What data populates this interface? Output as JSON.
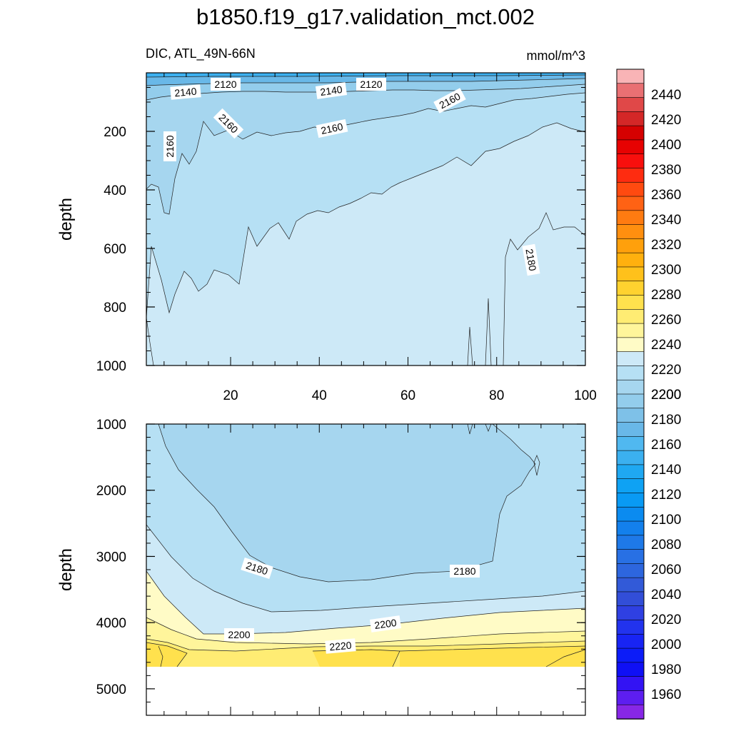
{
  "chart_data": {
    "type": "contour",
    "title": "b1850.f19_g17.validation_mct.002",
    "field_label": "DIC, ATL_49N-66N",
    "units": "mmol/m^3",
    "ylabel": "depth",
    "panels": [
      {
        "name": "upper",
        "ylim": [
          0,
          1000
        ],
        "xlim": [
          1,
          100
        ],
        "yticks": [
          200,
          400,
          600,
          800,
          1000
        ],
        "xticks": [
          20,
          40,
          60,
          80,
          100
        ],
        "contour_labels": [
          "2140",
          "2120",
          "2140",
          "2120",
          "2160",
          "2160",
          "2160",
          "2160",
          "2180"
        ]
      },
      {
        "name": "lower",
        "ylim": [
          1000,
          5400
        ],
        "xlim": [
          1,
          100
        ],
        "yticks": [
          1000,
          2000,
          3000,
          4000,
          5000
        ],
        "contour_labels": [
          "2180",
          "2180",
          "2200",
          "2200",
          "2220"
        ]
      }
    ],
    "colorbar": {
      "levels": [
        "2440",
        "2420",
        "2400",
        "2380",
        "2360",
        "2340",
        "2320",
        "2300",
        "2280",
        "2260",
        "2240",
        "2220",
        "2200",
        "2180",
        "2160",
        "2140",
        "2120",
        "2100",
        "2080",
        "2060",
        "2040",
        "2020",
        "2000",
        "1980",
        "1960"
      ],
      "colors": [
        "#f9b4b6",
        "#e97073",
        "#e04848",
        "#d42727",
        "#d50101",
        "#e70202",
        "#f80f0d",
        "#fe2c10",
        "#ff4a10",
        "#ff6214",
        "#ff7b11",
        "#ff8f0f",
        "#ffa00c",
        "#ffb00e",
        "#ffc11b",
        "#ffd22f",
        "#ffe14d",
        "#ffec73",
        "#fff59b",
        "#fffbc6",
        "#cde9f7",
        "#b6e0f4",
        "#a6d6ef",
        "#93cdec",
        "#7ec1e8",
        "#69b8e8",
        "#50b8f0",
        "#3bb0f0",
        "#1fa8f2",
        "#0ea2f4",
        "#099af4",
        "#0b8bf0",
        "#1380ec",
        "#1e79e8",
        "#2870e4",
        "#2d66de",
        "#325ad8",
        "#324ed8",
        "#2f40e2",
        "#2233ee",
        "#1824f4",
        "#0c1cf8",
        "#0f10f5",
        "#3313f4",
        "#5d1ef0",
        "#8727e6"
      ]
    }
  }
}
